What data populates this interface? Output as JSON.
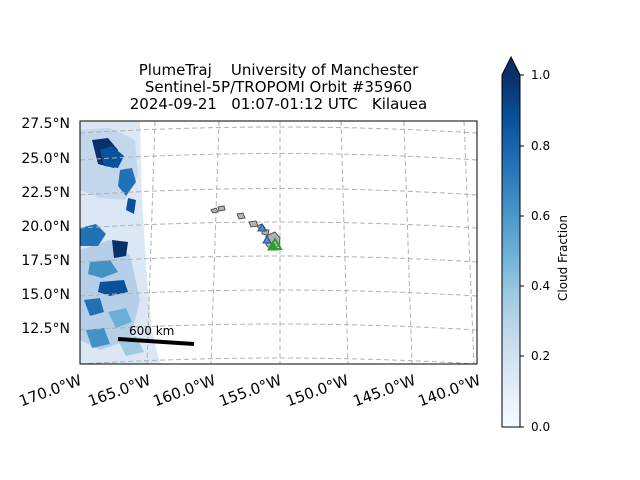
{
  "title": {
    "line1": "PlumeTraj    University of Manchester",
    "line2": "Sentinel-5P/TROPOMI Orbit #35960",
    "line3": "2024-09-21   01:07-01:12 UTC   Kilauea"
  },
  "map": {
    "latitude_labels": [
      "27.5°N",
      "25.0°N",
      "22.5°N",
      "20.0°N",
      "17.5°N",
      "15.0°N",
      "12.5°N"
    ],
    "longitude_labels": [
      "170.0°W",
      "165.0°W",
      "160.0°W",
      "155.0°W",
      "150.0°W",
      "145.0°W",
      "140.0°W"
    ],
    "gridlines": true,
    "scale_bar_label": "600 km",
    "volcano": "Kilauea",
    "swath_color": "#2166ac",
    "land_color": "#b3b3b3",
    "gridline_color": "#b0b0b0",
    "marker_colors": {
      "blue_triangle": "#4a90d9",
      "green_triangle": "#2ca02c"
    }
  },
  "colorbar": {
    "label": "Cloud Fraction",
    "ticks": [
      "0.0",
      "0.2",
      "0.4",
      "0.6",
      "0.8",
      "1.0"
    ],
    "range": [
      0.0,
      1.0
    ],
    "extend": "max",
    "colormap": "Blues"
  }
}
